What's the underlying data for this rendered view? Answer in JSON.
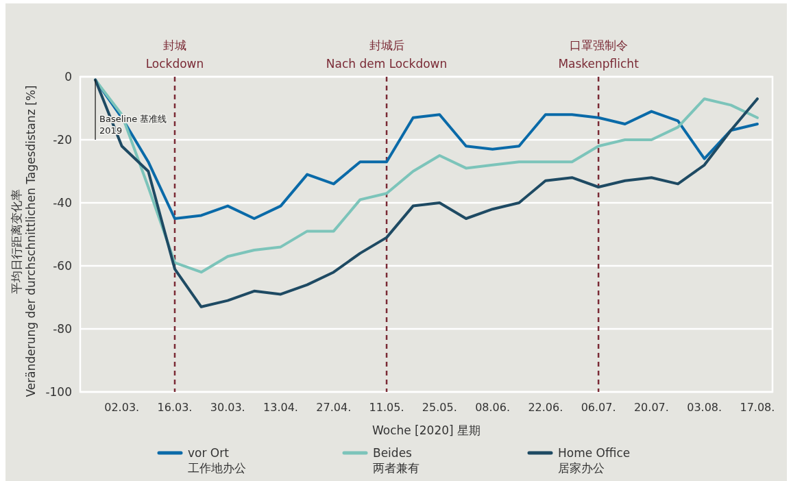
{
  "chart_data": {
    "type": "line",
    "x": [
      "2020-02-24",
      "2020-03-02",
      "2020-03-09",
      "2020-03-16",
      "2020-03-23",
      "2020-03-30",
      "2020-04-06",
      "2020-04-13",
      "2020-04-20",
      "2020-04-27",
      "2020-05-04",
      "2020-05-11",
      "2020-05-18",
      "2020-05-25",
      "2020-06-01",
      "2020-06-08",
      "2020-06-15",
      "2020-06-22",
      "2020-06-29",
      "2020-07-06",
      "2020-07-13",
      "2020-07-20",
      "2020-07-27",
      "2020-08-03",
      "2020-08-10",
      "2020-08-17"
    ],
    "series": [
      {
        "name": "vor Ort\n工作地办公",
        "color": "#0a6aa8",
        "values": [
          -1,
          -13,
          -27,
          -45,
          -44,
          -41,
          -45,
          -41,
          -31,
          -34,
          -27,
          -27,
          -13,
          -12,
          -22,
          -23,
          -22,
          -12,
          -12,
          -13,
          -15,
          -11,
          -14,
          -26,
          -17,
          -15
        ]
      },
      {
        "name": "Beides\n两者兼有",
        "color": "#7cc4ba",
        "values": [
          -1,
          -12,
          -35,
          -59,
          -62,
          -57,
          -55,
          -54,
          -49,
          -49,
          -39,
          -37,
          -30,
          -25,
          -29,
          -28,
          -27,
          -27,
          -27,
          -22,
          -20,
          -20,
          -16,
          -7,
          -9,
          -13
        ]
      },
      {
        "name": "Home Office\n居家办公",
        "color": "#1e4a63",
        "values": [
          -1,
          -22,
          -30,
          -61,
          -73,
          -71,
          -68,
          -69,
          -66,
          -62,
          -56,
          -51,
          -41,
          -40,
          -45,
          -42,
          -40,
          -33,
          -32,
          -35,
          -33,
          -32,
          -34,
          -28,
          -17,
          -7
        ]
      }
    ],
    "xlabel": "Woche [2020]  星期",
    "ylabel": "平均日行距离变化率\nVeränderung der durchschnittlichen Tagesdistanz [%]",
    "xlim": [
      "2020-02-20",
      "2020-08-21"
    ],
    "xticks": [
      {
        "value": "2020-03-02",
        "label": "02.03."
      },
      {
        "value": "2020-03-16",
        "label": "16.03."
      },
      {
        "value": "2020-03-30",
        "label": "30.03."
      },
      {
        "value": "2020-04-13",
        "label": "13.04."
      },
      {
        "value": "2020-04-27",
        "label": "27.04."
      },
      {
        "value": "2020-05-11",
        "label": "11.05."
      },
      {
        "value": "2020-05-25",
        "label": "25.05."
      },
      {
        "value": "2020-06-08",
        "label": "08.06."
      },
      {
        "value": "2020-06-22",
        "label": "22.06."
      },
      {
        "value": "2020-07-06",
        "label": "06.07."
      },
      {
        "value": "2020-07-20",
        "label": "20.07."
      },
      {
        "value": "2020-08-03",
        "label": "03.08."
      },
      {
        "value": "2020-08-17",
        "label": "17.08."
      }
    ],
    "ylim": [
      -100,
      0
    ],
    "yticks": [
      0,
      -20,
      -40,
      -60,
      -80,
      -100
    ],
    "ref_lines": [
      {
        "axis": "x",
        "value": "2020-03-16",
        "label": "封城\nLockdown",
        "color": "#7a2a35",
        "line_style": "dashed"
      },
      {
        "axis": "x",
        "value": "2020-05-11",
        "label": "封城后\nNach dem Lockdown",
        "color": "#7a2a35",
        "line_style": "dashed"
      },
      {
        "axis": "x",
        "value": "2020-07-06",
        "label": "口罩强制令\nMaskenpflicht",
        "color": "#7a2a35",
        "line_style": "dashed"
      }
    ],
    "annotations": [
      {
        "text": "Baseline 基准线\n2019",
        "x": "2020-02-24",
        "y": 0
      }
    ],
    "grid": "y",
    "legend": "bottom",
    "line_style": "solid",
    "marker": "none"
  }
}
